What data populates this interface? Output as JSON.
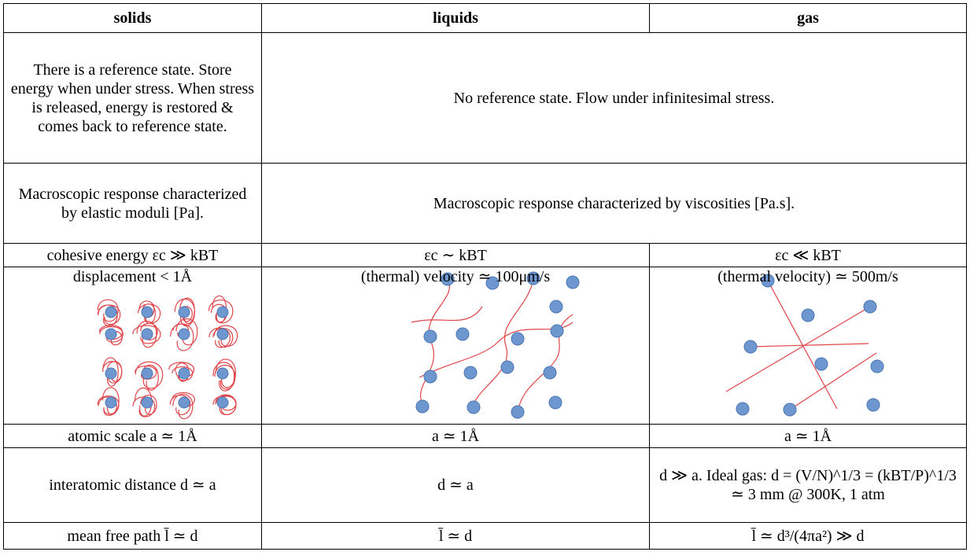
{
  "table": {
    "header": [
      "solids",
      "liquids",
      "gas"
    ],
    "rows": [
      [
        "There is a reference state. Store energy when under stress. When stress is released, energy is restored & comes back to reference state.",
        "No reference state. Flow under infinitesimal stress."
      ],
      [
        "Macroscopic response characterized by elastic moduli [Pa].",
        "Macroscopic response characterized by viscosities [Pa.s]."
      ],
      [
        "cohesive energy εc ≫ kBT",
        "εc ∼ kBT",
        "εc ≪ kBT"
      ],
      [
        "displacement < 1Å",
        "(thermal) velocity ≃ 100μm/s",
        "(thermal velocity) ≃ 500m/s"
      ],
      [
        "atomic scale a ≃ 1Å",
        "a ≃ 1Å",
        "a ≃ 1Å"
      ],
      [
        "interatomic distance d ≃ a",
        "d ≃ a",
        "d ≫ a. Ideal gas: d = (V/N)^1/3 = (kBT/P)^1/3 ≃ 3 mm @ 300K, 1 atm"
      ],
      [
        "mean free path l̄ ≃ d",
        "l̄ ≃ d",
        "l̄ ≃ d³/(4πa²) ≫ d"
      ]
    ]
  }
}
